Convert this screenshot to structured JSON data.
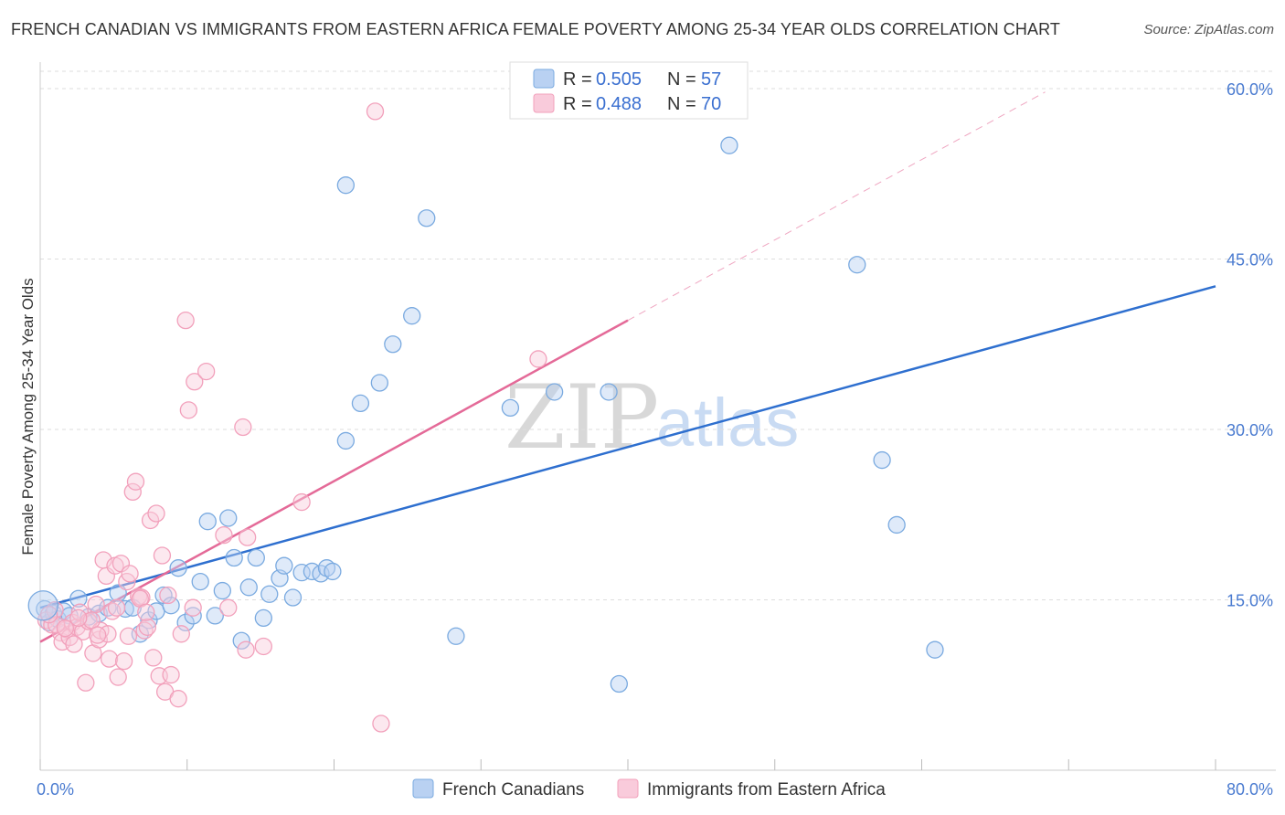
{
  "header": {
    "title": "FRENCH CANADIAN VS IMMIGRANTS FROM EASTERN AFRICA FEMALE POVERTY AMONG 25-34 YEAR OLDS CORRELATION CHART",
    "source": "Source: ZipAtlas.com"
  },
  "watermark": {
    "zip": "ZIP",
    "atlas": "atlas"
  },
  "legend": {
    "r_label": "R =",
    "n_label": "N =",
    "entries": [
      {
        "r": "0.505",
        "n": "57"
      },
      {
        "r": "0.488",
        "n": "70"
      }
    ]
  },
  "chart_data": {
    "type": "scatter",
    "title": "FRENCH CANADIAN VS IMMIGRANTS FROM EASTERN AFRICA FEMALE POVERTY AMONG 25-34 YEAR OLDS CORRELATION CHART",
    "xlabel": "",
    "ylabel": "Female Poverty Among 25-34 Year Olds",
    "xlim": [
      0,
      80
    ],
    "ylim": [
      0,
      60
    ],
    "x_tick_labels": [
      {
        "value": 0,
        "label": "0.0%"
      },
      {
        "value": 80,
        "label": "80.0%"
      }
    ],
    "y_tick_labels": [
      {
        "value": 15,
        "label": "15.0%"
      },
      {
        "value": 30,
        "label": "30.0%"
      },
      {
        "value": 45,
        "label": "45.0%"
      },
      {
        "value": 60,
        "label": "60.0%"
      }
    ],
    "grid": true,
    "series": [
      {
        "name": "French Canadians",
        "color": "#7aaae0",
        "fill": "#b9d1f2",
        "line_color": "#2e6fcf",
        "trend": {
          "x0": 0,
          "y0": 14.3,
          "x1": 80,
          "y1": 42.6
        },
        "points": [
          [
            0.3,
            14.2
          ],
          [
            0.6,
            13.0
          ],
          [
            0.9,
            13.8
          ],
          [
            1.2,
            13.3
          ],
          [
            1.6,
            14.0
          ],
          [
            2.0,
            13.6
          ],
          [
            2.6,
            15.1
          ],
          [
            3.3,
            13.5
          ],
          [
            4.0,
            13.8
          ],
          [
            4.6,
            14.3
          ],
          [
            5.3,
            15.6
          ],
          [
            5.8,
            14.2
          ],
          [
            6.3,
            14.3
          ],
          [
            6.8,
            12.0
          ],
          [
            7.4,
            13.2
          ],
          [
            7.9,
            14.0
          ],
          [
            8.4,
            15.4
          ],
          [
            8.9,
            14.5
          ],
          [
            9.4,
            17.8
          ],
          [
            9.9,
            13.0
          ],
          [
            10.4,
            13.6
          ],
          [
            10.9,
            16.6
          ],
          [
            11.4,
            21.9
          ],
          [
            11.9,
            13.6
          ],
          [
            12.4,
            15.8
          ],
          [
            12.8,
            22.2
          ],
          [
            13.2,
            18.7
          ],
          [
            13.7,
            11.4
          ],
          [
            14.2,
            16.1
          ],
          [
            14.7,
            18.7
          ],
          [
            15.2,
            13.4
          ],
          [
            15.6,
            15.5
          ],
          [
            16.3,
            16.9
          ],
          [
            16.6,
            18.0
          ],
          [
            17.2,
            15.2
          ],
          [
            17.8,
            17.4
          ],
          [
            18.5,
            17.5
          ],
          [
            19.1,
            17.3
          ],
          [
            19.5,
            17.8
          ],
          [
            19.9,
            17.5
          ],
          [
            20.8,
            29.0
          ],
          [
            20.8,
            51.5
          ],
          [
            21.8,
            32.3
          ],
          [
            23.1,
            34.1
          ],
          [
            24.0,
            37.5
          ],
          [
            25.3,
            40.0
          ],
          [
            26.3,
            48.6
          ],
          [
            28.3,
            11.8
          ],
          [
            32.0,
            31.9
          ],
          [
            35.0,
            33.3
          ],
          [
            38.7,
            33.3
          ],
          [
            39.4,
            7.6
          ],
          [
            46.9,
            55.0
          ],
          [
            55.6,
            44.5
          ],
          [
            57.3,
            27.3
          ],
          [
            58.3,
            21.6
          ],
          [
            60.9,
            10.6
          ]
        ]
      },
      {
        "name": "Immigrants from Eastern Africa",
        "color": "#f2a0bb",
        "fill": "#f9cbdb",
        "line_color": "#e46a98",
        "trend": {
          "x0": 0,
          "y0": 11.3,
          "x1": 40,
          "y1": 39.6
        },
        "trend_extension": {
          "x0": 40,
          "y0": 39.6,
          "x1": 68.4,
          "y1": 59.7
        },
        "points": [
          [
            0.4,
            13.2
          ],
          [
            0.8,
            12.8
          ],
          [
            1.0,
            14.1
          ],
          [
            1.4,
            12.1
          ],
          [
            1.5,
            11.3
          ],
          [
            1.8,
            12.4
          ],
          [
            2.0,
            11.7
          ],
          [
            2.2,
            13.0
          ],
          [
            2.5,
            12.6
          ],
          [
            2.7,
            13.9
          ],
          [
            2.9,
            12.2
          ],
          [
            3.1,
            7.7
          ],
          [
            3.3,
            13.1
          ],
          [
            3.6,
            10.3
          ],
          [
            3.8,
            14.6
          ],
          [
            4.0,
            11.5
          ],
          [
            4.1,
            12.3
          ],
          [
            4.3,
            18.5
          ],
          [
            4.5,
            17.1
          ],
          [
            4.7,
            9.8
          ],
          [
            4.9,
            14.0
          ],
          [
            5.1,
            18.0
          ],
          [
            5.3,
            8.2
          ],
          [
            5.5,
            18.2
          ],
          [
            5.7,
            9.6
          ],
          [
            5.9,
            16.6
          ],
          [
            6.1,
            17.3
          ],
          [
            6.3,
            24.5
          ],
          [
            6.5,
            25.4
          ],
          [
            6.7,
            15.3
          ],
          [
            6.9,
            15.2
          ],
          [
            7.1,
            12.3
          ],
          [
            7.3,
            12.6
          ],
          [
            7.5,
            22.0
          ],
          [
            7.7,
            9.9
          ],
          [
            7.9,
            22.6
          ],
          [
            8.1,
            8.3
          ],
          [
            8.3,
            18.9
          ],
          [
            8.5,
            6.9
          ],
          [
            8.7,
            15.4
          ],
          [
            8.9,
            8.4
          ],
          [
            9.4,
            6.3
          ],
          [
            9.6,
            12.0
          ],
          [
            9.9,
            39.6
          ],
          [
            10.1,
            31.7
          ],
          [
            10.4,
            14.3
          ],
          [
            10.5,
            34.2
          ],
          [
            11.3,
            35.1
          ],
          [
            12.5,
            20.7
          ],
          [
            12.8,
            14.3
          ],
          [
            13.8,
            30.2
          ],
          [
            14.0,
            10.6
          ],
          [
            14.1,
            20.5
          ],
          [
            15.2,
            10.9
          ],
          [
            17.8,
            23.6
          ],
          [
            22.8,
            58.0
          ],
          [
            23.2,
            4.1
          ],
          [
            33.9,
            36.2
          ],
          [
            2.3,
            11.1
          ],
          [
            1.1,
            12.8
          ],
          [
            3.5,
            13.2
          ],
          [
            4.6,
            12.0
          ],
          [
            5.2,
            14.3
          ],
          [
            6.0,
            11.8
          ],
          [
            6.8,
            15.1
          ],
          [
            7.2,
            13.9
          ],
          [
            0.6,
            13.7
          ],
          [
            1.7,
            12.5
          ],
          [
            2.6,
            13.4
          ],
          [
            3.9,
            11.9
          ]
        ]
      }
    ]
  },
  "bottom_legend": {
    "items": [
      "French Canadians",
      "Immigrants from Eastern Africa"
    ]
  }
}
